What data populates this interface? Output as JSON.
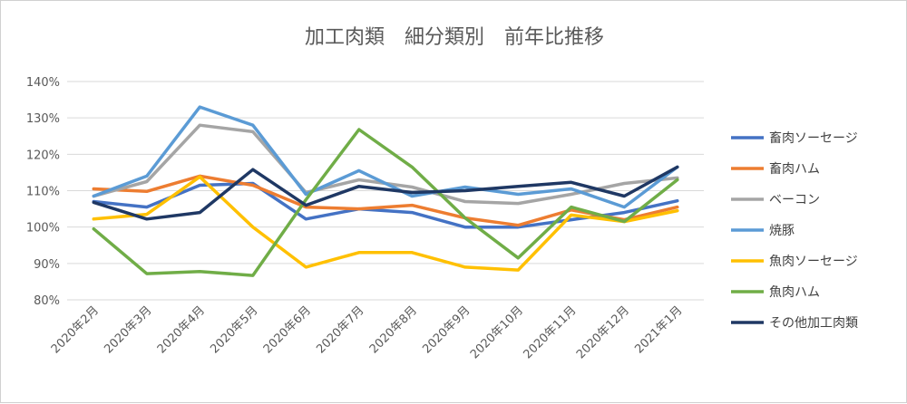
{
  "chart_data": {
    "type": "line",
    "title": "加工肉類　細分類別　前年比推移",
    "xlabel": "",
    "ylabel": "",
    "ylim": [
      0.8,
      1.4
    ],
    "yticks": [
      "80%",
      "90%",
      "100%",
      "110%",
      "120%",
      "130%",
      "140%"
    ],
    "grid": true,
    "legend_position": "right",
    "categories": [
      "2020年2月",
      "2020年3月",
      "2020年4月",
      "2020年5月",
      "2020年6月",
      "2020年7月",
      "2020年8月",
      "2020年9月",
      "2020年10月",
      "2020年11月",
      "2020年12月",
      "2021年1月"
    ],
    "series": [
      {
        "name": "畜肉ソーセージ",
        "color": "#4472C4",
        "values": [
          1.07,
          1.055,
          1.115,
          1.12,
          1.022,
          1.05,
          1.04,
          1.0,
          1.0,
          1.02,
          1.04,
          1.072
        ]
      },
      {
        "name": "畜肉ハム",
        "color": "#ED7D31",
        "values": [
          1.105,
          1.098,
          1.14,
          1.115,
          1.055,
          1.05,
          1.06,
          1.025,
          1.005,
          1.047,
          1.02,
          1.055
        ]
      },
      {
        "name": "ベーコン",
        "color": "#A5A5A5",
        "values": [
          1.085,
          1.125,
          1.28,
          1.262,
          1.095,
          1.13,
          1.11,
          1.07,
          1.065,
          1.09,
          1.12,
          1.135
        ]
      },
      {
        "name": "焼豚",
        "color": "#5B9BD5",
        "values": [
          1.085,
          1.14,
          1.33,
          1.28,
          1.09,
          1.155,
          1.085,
          1.11,
          1.09,
          1.105,
          1.055,
          1.165
        ]
      },
      {
        "name": "魚肉ソーセージ",
        "color": "#FFC000",
        "values": [
          1.022,
          1.035,
          1.138,
          1.0,
          0.89,
          0.93,
          0.93,
          0.89,
          0.882,
          1.033,
          1.015,
          1.045
        ]
      },
      {
        "name": "魚肉ハム",
        "color": "#70AD47",
        "values": [
          0.995,
          0.872,
          0.878,
          0.867,
          1.075,
          1.268,
          1.165,
          1.025,
          0.915,
          1.055,
          1.015,
          1.13
        ]
      },
      {
        "name": "その他加工肉類",
        "color": "#1F3864",
        "values": [
          1.068,
          1.022,
          1.04,
          1.158,
          1.06,
          1.112,
          1.095,
          1.1,
          1.112,
          1.123,
          1.085,
          1.165
        ]
      }
    ]
  }
}
